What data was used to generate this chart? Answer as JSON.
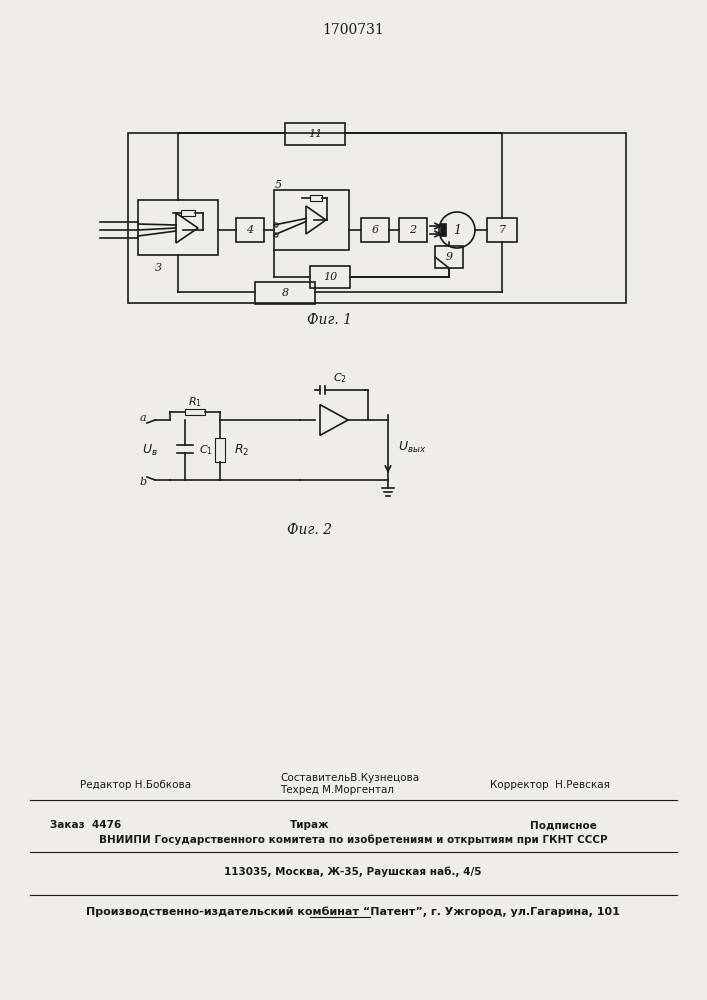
{
  "title": "1700731",
  "fig1_caption": "Фиг. 1",
  "fig2_caption": "Фиг. 2",
  "footer_line1_left": "Редактор Н.Бобкова",
  "footer_line1_center1": "СоставительВ.Кузнецова",
  "footer_line1_center2": "Техред М.Моргентал",
  "footer_line1_right": "Корректор  Н.Ревская",
  "footer_line2_left": "Заказ  4476",
  "footer_line2_center": "Тираж",
  "footer_line2_right": "Подписное",
  "footer_line3": "ВНИИПИ Государственного комитета по изобретениям и открытиям при ГКНТ СССР",
  "footer_line4": "113035, Москва, Ж-35, Раушская наб., 4/5",
  "footer_line5": "Производственно-издательский комбинат “Патент”, г. Ужгород, ул.Гагарина, 101",
  "bg_color": "#f0ede8",
  "line_color": "#1a1a1a"
}
